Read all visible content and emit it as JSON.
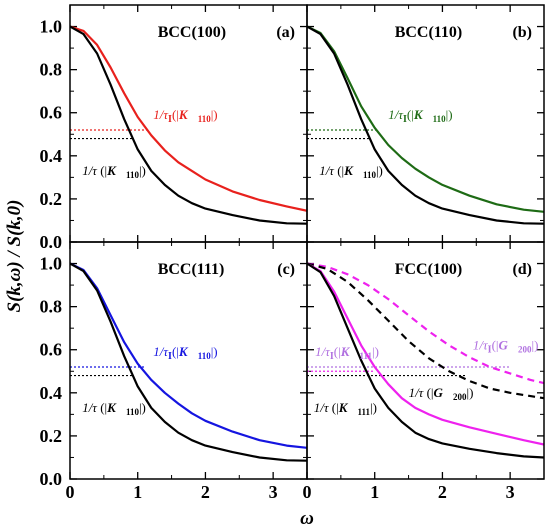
{
  "figure": {
    "ylabel": "S(k,ω) / S(k,0)",
    "xlabel": "ω"
  },
  "chart_data": [
    {
      "type": "line",
      "title": "BCC(100)",
      "tag": "(a)",
      "xlim": [
        0,
        3.5
      ],
      "ylim": [
        0,
        1.1
      ],
      "xticks": [
        0,
        1,
        2,
        3
      ],
      "yticks": [
        0.0,
        0.2,
        0.4,
        0.6,
        0.8,
        1.0
      ],
      "series": [
        {
          "color": "#e8211d",
          "dash": "",
          "points": [
            [
              0,
              1.0
            ],
            [
              0.2,
              0.98
            ],
            [
              0.4,
              0.915
            ],
            [
              0.6,
              0.81
            ],
            [
              0.8,
              0.69
            ],
            [
              1.0,
              0.58
            ],
            [
              1.2,
              0.495
            ],
            [
              1.4,
              0.425
            ],
            [
              1.6,
              0.37
            ],
            [
              1.8,
              0.33
            ],
            [
              2.0,
              0.29
            ],
            [
              2.4,
              0.235
            ],
            [
              2.8,
              0.195
            ],
            [
              3.2,
              0.165
            ],
            [
              3.5,
              0.145
            ]
          ]
        },
        {
          "color": "#000000",
          "dash": "",
          "points": [
            [
              0,
              1.0
            ],
            [
              0.2,
              0.965
            ],
            [
              0.4,
              0.875
            ],
            [
              0.6,
              0.73
            ],
            [
              0.8,
              0.57
            ],
            [
              1.0,
              0.43
            ],
            [
              1.2,
              0.33
            ],
            [
              1.4,
              0.265
            ],
            [
              1.6,
              0.215
            ],
            [
              1.8,
              0.18
            ],
            [
              2.0,
              0.155
            ],
            [
              2.4,
              0.125
            ],
            [
              2.8,
              0.1
            ],
            [
              3.2,
              0.087
            ],
            [
              3.5,
              0.085
            ]
          ]
        }
      ],
      "guides": [
        {
          "y": 0.52,
          "x_end": 1.15,
          "color": "#e8211d"
        },
        {
          "y": 0.48,
          "x_end": 0.92,
          "color": "#000000"
        }
      ],
      "annotations": [
        {
          "text": "1/τI(|K110|)",
          "x": 1.23,
          "y": 0.57,
          "color": "#e8211d"
        },
        {
          "text": "1/τ (|K110|)",
          "x": 0.18,
          "y": 0.31,
          "color": "#000000"
        }
      ]
    },
    {
      "type": "line",
      "title": "BCC(110)",
      "tag": "(b)",
      "xlim": [
        0,
        3.5
      ],
      "ylim": [
        0,
        1.1
      ],
      "xticks": [
        0,
        1,
        2,
        3
      ],
      "yticks": [
        0.0,
        0.2,
        0.4,
        0.6,
        0.8,
        1.0
      ],
      "series": [
        {
          "color": "#1e6b15",
          "dash": "",
          "points": [
            [
              0,
              1.0
            ],
            [
              0.2,
              0.97
            ],
            [
              0.4,
              0.885
            ],
            [
              0.6,
              0.76
            ],
            [
              0.8,
              0.63
            ],
            [
              1.0,
              0.53
            ],
            [
              1.2,
              0.45
            ],
            [
              1.4,
              0.39
            ],
            [
              1.6,
              0.34
            ],
            [
              1.8,
              0.3
            ],
            [
              2.0,
              0.265
            ],
            [
              2.4,
              0.215
            ],
            [
              2.8,
              0.175
            ],
            [
              3.2,
              0.15
            ],
            [
              3.5,
              0.14
            ]
          ]
        },
        {
          "color": "#000000",
          "dash": "",
          "points": [
            [
              0,
              1.0
            ],
            [
              0.2,
              0.965
            ],
            [
              0.4,
              0.875
            ],
            [
              0.6,
              0.73
            ],
            [
              0.8,
              0.57
            ],
            [
              1.0,
              0.43
            ],
            [
              1.2,
              0.33
            ],
            [
              1.4,
              0.265
            ],
            [
              1.6,
              0.215
            ],
            [
              1.8,
              0.18
            ],
            [
              2.0,
              0.155
            ],
            [
              2.4,
              0.125
            ],
            [
              2.8,
              0.1
            ],
            [
              3.2,
              0.087
            ],
            [
              3.5,
              0.085
            ]
          ]
        }
      ],
      "guides": [
        {
          "y": 0.52,
          "x_end": 1.05,
          "color": "#1e6b15"
        },
        {
          "y": 0.48,
          "x_end": 0.92,
          "color": "#000000"
        }
      ],
      "annotations": [
        {
          "text": "1/τI(|K110|)",
          "x": 1.2,
          "y": 0.57,
          "color": "#1e6b15"
        },
        {
          "text": "1/τ (|K110|)",
          "x": 0.18,
          "y": 0.31,
          "color": "#000000"
        }
      ]
    },
    {
      "type": "line",
      "title": "BCC(111)",
      "tag": "(c)",
      "xlim": [
        0,
        3.5
      ],
      "ylim": [
        0,
        1.1
      ],
      "xticks": [
        0,
        1,
        2,
        3
      ],
      "yticks": [
        0.0,
        0.2,
        0.4,
        0.6,
        0.8,
        1.0
      ],
      "series": [
        {
          "color": "#1515e0",
          "dash": "",
          "points": [
            [
              0,
              1.0
            ],
            [
              0.2,
              0.97
            ],
            [
              0.4,
              0.885
            ],
            [
              0.6,
              0.76
            ],
            [
              0.8,
              0.635
            ],
            [
              1.0,
              0.535
            ],
            [
              1.2,
              0.46
            ],
            [
              1.4,
              0.4
            ],
            [
              1.6,
              0.35
            ],
            [
              1.8,
              0.305
            ],
            [
              2.0,
              0.27
            ],
            [
              2.4,
              0.22
            ],
            [
              2.8,
              0.18
            ],
            [
              3.2,
              0.155
            ],
            [
              3.5,
              0.145
            ]
          ]
        },
        {
          "color": "#000000",
          "dash": "",
          "points": [
            [
              0,
              1.0
            ],
            [
              0.2,
              0.965
            ],
            [
              0.4,
              0.875
            ],
            [
              0.6,
              0.73
            ],
            [
              0.8,
              0.57
            ],
            [
              1.0,
              0.43
            ],
            [
              1.2,
              0.33
            ],
            [
              1.4,
              0.265
            ],
            [
              1.6,
              0.215
            ],
            [
              1.8,
              0.18
            ],
            [
              2.0,
              0.155
            ],
            [
              2.4,
              0.125
            ],
            [
              2.8,
              0.1
            ],
            [
              3.2,
              0.087
            ],
            [
              3.5,
              0.085
            ]
          ]
        }
      ],
      "guides": [
        {
          "y": 0.52,
          "x_end": 1.1,
          "color": "#1515e0"
        },
        {
          "y": 0.48,
          "x_end": 0.92,
          "color": "#000000"
        }
      ],
      "annotations": [
        {
          "text": "1/τI(|K110|)",
          "x": 1.23,
          "y": 0.57,
          "color": "#1515e0"
        },
        {
          "text": "1/τ (|K110|)",
          "x": 0.18,
          "y": 0.31,
          "color": "#000000"
        }
      ]
    },
    {
      "type": "line",
      "title": "FCC(100)",
      "tag": "(d)",
      "xlim": [
        0,
        3.5
      ],
      "ylim": [
        0,
        1.1
      ],
      "xticks": [
        0,
        1,
        2,
        3
      ],
      "yticks": [
        0.0,
        0.2,
        0.4,
        0.6,
        0.8,
        1.0
      ],
      "series": [
        {
          "color": "#ee22ee",
          "dash": "7,5",
          "points": [
            [
              0,
              1.0
            ],
            [
              0.3,
              0.985
            ],
            [
              0.6,
              0.95
            ],
            [
              0.9,
              0.9
            ],
            [
              1.2,
              0.835
            ],
            [
              1.5,
              0.76
            ],
            [
              1.8,
              0.685
            ],
            [
              2.1,
              0.62
            ],
            [
              2.4,
              0.565
            ],
            [
              2.7,
              0.52
            ],
            [
              3.0,
              0.49
            ],
            [
              3.3,
              0.46
            ],
            [
              3.5,
              0.445
            ]
          ]
        },
        {
          "color": "#000000",
          "dash": "7,5",
          "points": [
            [
              0,
              1.0
            ],
            [
              0.3,
              0.975
            ],
            [
              0.6,
              0.915
            ],
            [
              0.9,
              0.83
            ],
            [
              1.2,
              0.735
            ],
            [
              1.5,
              0.64
            ],
            [
              1.8,
              0.56
            ],
            [
              2.1,
              0.5
            ],
            [
              2.4,
              0.455
            ],
            [
              2.7,
              0.42
            ],
            [
              3.0,
              0.4
            ],
            [
              3.3,
              0.385
            ],
            [
              3.5,
              0.375
            ]
          ]
        },
        {
          "color": "#ee22ee",
          "dash": "",
          "points": [
            [
              0,
              1.0
            ],
            [
              0.2,
              0.965
            ],
            [
              0.4,
              0.87
            ],
            [
              0.6,
              0.745
            ],
            [
              0.8,
              0.62
            ],
            [
              1.0,
              0.52
            ],
            [
              1.2,
              0.44
            ],
            [
              1.4,
              0.375
            ],
            [
              1.6,
              0.33
            ],
            [
              1.8,
              0.3
            ],
            [
              2.0,
              0.275
            ],
            [
              2.4,
              0.24
            ],
            [
              2.8,
              0.21
            ],
            [
              3.2,
              0.18
            ],
            [
              3.5,
              0.16
            ]
          ]
        },
        {
          "color": "#000000",
          "dash": "",
          "points": [
            [
              0,
              1.0
            ],
            [
              0.2,
              0.96
            ],
            [
              0.4,
              0.85
            ],
            [
              0.6,
              0.7
            ],
            [
              0.8,
              0.55
            ],
            [
              1.0,
              0.42
            ],
            [
              1.2,
              0.33
            ],
            [
              1.4,
              0.265
            ],
            [
              1.6,
              0.215
            ],
            [
              1.8,
              0.185
            ],
            [
              2.0,
              0.165
            ],
            [
              2.4,
              0.14
            ],
            [
              2.8,
              0.12
            ],
            [
              3.2,
              0.105
            ],
            [
              3.5,
              0.1
            ]
          ]
        }
      ],
      "guides": [
        {
          "y": 0.52,
          "x_end": 3.0,
          "color": "#b070e0"
        },
        {
          "y": 0.5,
          "x_end": 1.0,
          "color": "#ee22ee"
        },
        {
          "y": 0.48,
          "x_end": 2.35,
          "color": "#000000"
        }
      ],
      "annotations": [
        {
          "text": "1/τI(|K111|)",
          "x": 0.12,
          "y": 0.57,
          "color": "#b070e0"
        },
        {
          "text": "1/τI(|G200|)",
          "x": 2.45,
          "y": 0.6,
          "color": "#b070e0"
        },
        {
          "text": "1/τ (|G200|)",
          "x": 1.5,
          "y": 0.38,
          "color": "#000000"
        },
        {
          "text": "1/τ (|K111|)",
          "x": 0.1,
          "y": 0.31,
          "color": "#000000"
        }
      ]
    }
  ]
}
